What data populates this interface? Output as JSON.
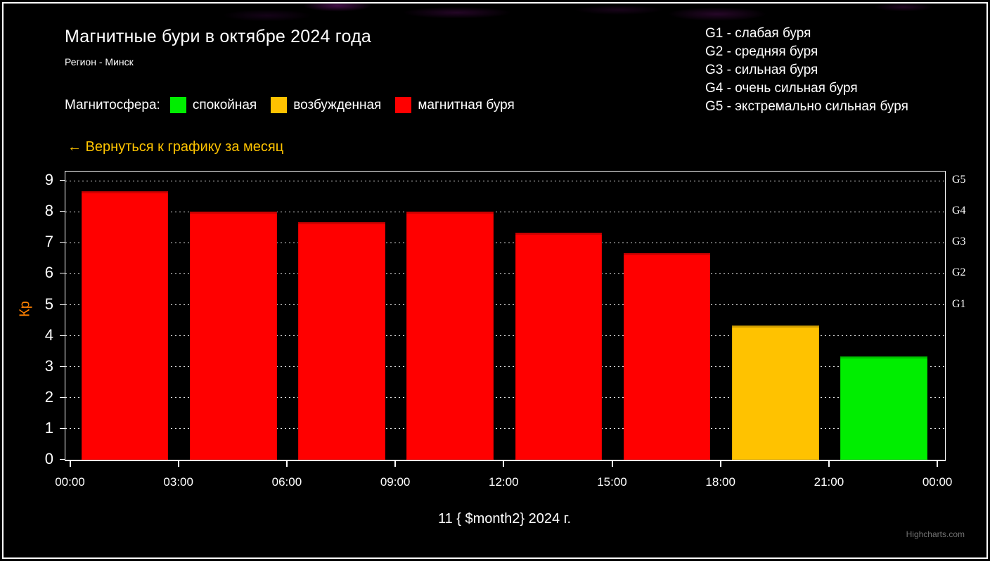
{
  "header": {
    "title": "Магнитные бури в октябре 2024 года",
    "subtitle": "Регион - Минск"
  },
  "storm_scale": {
    "items": [
      "G1 - слабая буря",
      "G2 - средняя буря",
      "G3 - сильная буря",
      "G4 - очень сильная буря",
      "G5 - экстремально сильная буря"
    ]
  },
  "legend": {
    "label": "Магнитосфера:",
    "items": [
      {
        "label": "спокойная",
        "color": "#00ee00"
      },
      {
        "label": "возбужденная",
        "color": "#ffc200"
      },
      {
        "label": "магнитная буря",
        "color": "#ff0000"
      }
    ]
  },
  "back_link": {
    "label": "← Вернуться к графику за месяц",
    "color": "#ffc400"
  },
  "chart_data": {
    "type": "bar",
    "title": "Магнитные бури в октябре 2024 года",
    "subtitle": "Регион - Минск",
    "categories": [
      "00:00",
      "03:00",
      "06:00",
      "09:00",
      "12:00",
      "15:00",
      "18:00",
      "21:00",
      "00:00"
    ],
    "values": [
      8.67,
      8,
      7.67,
      8,
      7.33,
      6.67,
      4.33,
      3.33
    ],
    "colors": [
      "#ff0000",
      "#ff0000",
      "#ff0000",
      "#ff0000",
      "#ff0000",
      "#ff0000",
      "#ffc200",
      "#00ee00"
    ],
    "xlabel": "11 { $month2} 2024 г.",
    "ylabel": "Кр",
    "ylim": [
      0,
      9.3
    ],
    "yticks": [
      0,
      1,
      2,
      3,
      4,
      5,
      6,
      7,
      8,
      9
    ],
    "right_axis_labels": [
      {
        "label": "G1",
        "kp": 5
      },
      {
        "label": "G2",
        "kp": 6
      },
      {
        "label": "G3",
        "kp": 7
      },
      {
        "label": "G4",
        "kp": 8
      },
      {
        "label": "G5",
        "kp": 9
      }
    ],
    "grid": "dotted",
    "legend_position": "top",
    "accent_colors": {
      "quiet": "#00ee00",
      "excited": "#ffc200",
      "storm": "#ff0000",
      "axis_title": "#ff8000"
    }
  },
  "credits": {
    "label": "Highcharts.com"
  }
}
